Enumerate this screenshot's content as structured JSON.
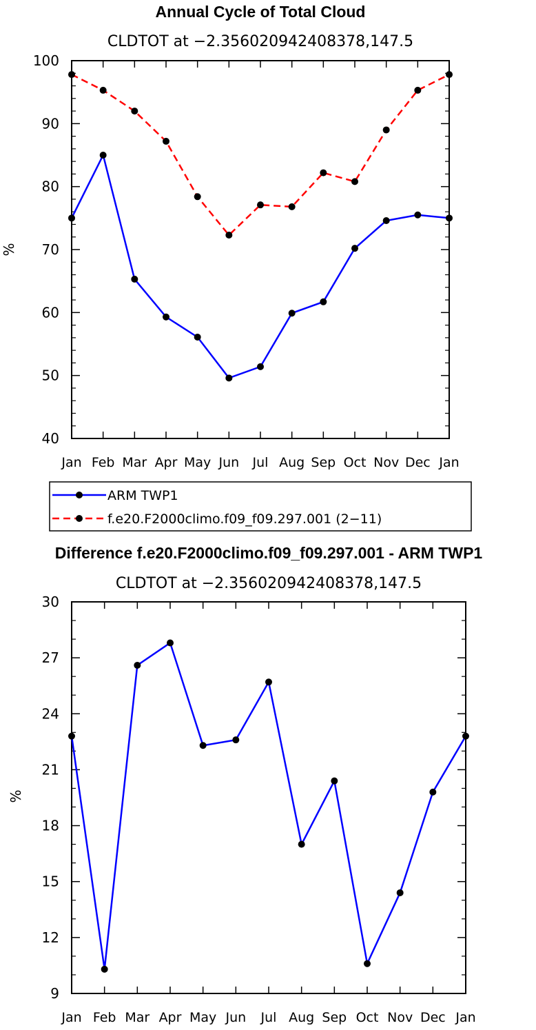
{
  "chart_data": [
    {
      "type": "line",
      "title": "Annual Cycle of Total Cloud",
      "subtitle": "CLDTOT at −2.356020942408378,147.5",
      "xlabel": "",
      "ylabel": "%",
      "categories": [
        "Jan",
        "Feb",
        "Mar",
        "Apr",
        "May",
        "Jun",
        "Jul",
        "Aug",
        "Sep",
        "Oct",
        "Nov",
        "Dec",
        "Jan"
      ],
      "ylim": [
        40,
        100
      ],
      "yticks": [
        40,
        50,
        60,
        70,
        80,
        90,
        100
      ],
      "ytick_labels": [
        "40",
        "50",
        "60",
        "70",
        "80",
        "90",
        "100"
      ],
      "series": [
        {
          "name": "ARM TWP1",
          "color": "#0000ff",
          "dash": "solid",
          "values": [
            75.0,
            85.0,
            65.3,
            59.3,
            56.1,
            49.6,
            51.4,
            59.9,
            61.7,
            70.2,
            74.6,
            75.5,
            75.0
          ]
        },
        {
          "name": "f.e20.F2000climo.f09_f09.297.001 (2−11)",
          "color": "#ff0000",
          "dash": "dashed",
          "values": [
            97.8,
            95.3,
            92.0,
            87.2,
            78.4,
            72.3,
            77.1,
            76.8,
            82.2,
            80.8,
            89.0,
            95.3,
            97.8
          ]
        }
      ],
      "legend": {
        "position": "bottom"
      }
    },
    {
      "type": "line",
      "title": "Difference f.e20.F2000climo.f09_f09.297.001 - ARM TWP1",
      "subtitle": "CLDTOT at −2.356020942408378,147.5",
      "xlabel": "",
      "ylabel": "%",
      "categories": [
        "Jan",
        "Feb",
        "Mar",
        "Apr",
        "May",
        "Jun",
        "Jul",
        "Aug",
        "Sep",
        "Oct",
        "Nov",
        "Dec",
        "Jan"
      ],
      "ylim": [
        9,
        30
      ],
      "yticks": [
        9,
        12,
        15,
        18,
        21,
        24,
        27,
        30
      ],
      "ytick_labels": [
        "9",
        "12",
        "15",
        "18",
        "21",
        "24",
        "27",
        "30"
      ],
      "series": [
        {
          "name": "Difference",
          "color": "#0000ff",
          "dash": "solid",
          "values": [
            22.8,
            10.3,
            26.6,
            27.8,
            22.3,
            22.6,
            25.7,
            17.0,
            20.4,
            10.6,
            14.4,
            19.8,
            22.8
          ]
        }
      ]
    }
  ]
}
